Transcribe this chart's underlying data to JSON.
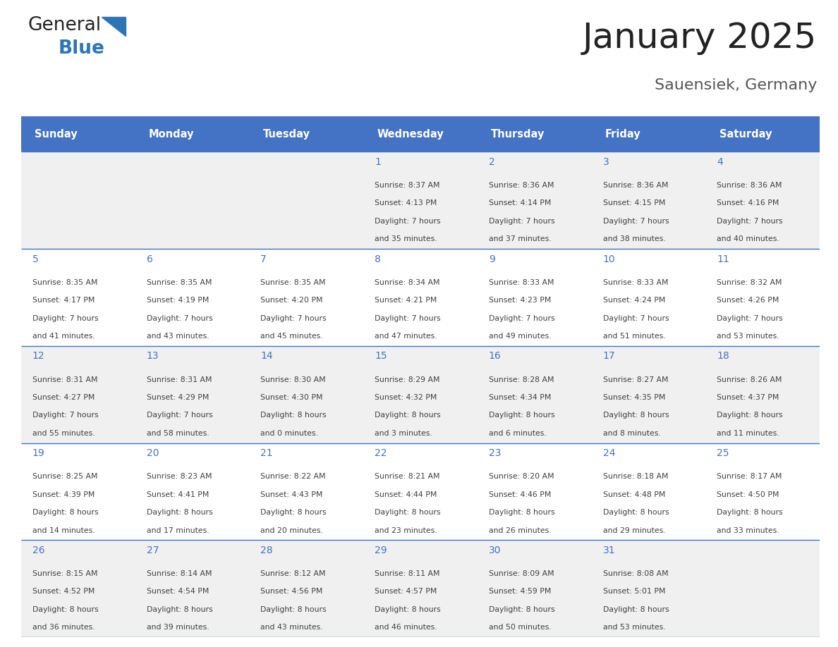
{
  "title": "January 2025",
  "subtitle": "Sauensiek, Germany",
  "days_of_week": [
    "Sunday",
    "Monday",
    "Tuesday",
    "Wednesday",
    "Thursday",
    "Friday",
    "Saturday"
  ],
  "header_bg": "#4472C4",
  "header_text_color": "#FFFFFF",
  "row_bg_odd": "#F0F0F0",
  "row_bg_even": "#FFFFFF",
  "day_number_color": "#4472C4",
  "text_color": "#404040",
  "divider_color": "#4472C4",
  "calendar_data": [
    [
      null,
      null,
      null,
      {
        "day": 1,
        "sunrise": "8:37 AM",
        "sunset": "4:13 PM",
        "daylight_h": "7 hours",
        "daylight_m": "and 35 minutes."
      },
      {
        "day": 2,
        "sunrise": "8:36 AM",
        "sunset": "4:14 PM",
        "daylight_h": "7 hours",
        "daylight_m": "and 37 minutes."
      },
      {
        "day": 3,
        "sunrise": "8:36 AM",
        "sunset": "4:15 PM",
        "daylight_h": "7 hours",
        "daylight_m": "and 38 minutes."
      },
      {
        "day": 4,
        "sunrise": "8:36 AM",
        "sunset": "4:16 PM",
        "daylight_h": "7 hours",
        "daylight_m": "and 40 minutes."
      }
    ],
    [
      {
        "day": 5,
        "sunrise": "8:35 AM",
        "sunset": "4:17 PM",
        "daylight_h": "7 hours",
        "daylight_m": "and 41 minutes."
      },
      {
        "day": 6,
        "sunrise": "8:35 AM",
        "sunset": "4:19 PM",
        "daylight_h": "7 hours",
        "daylight_m": "and 43 minutes."
      },
      {
        "day": 7,
        "sunrise": "8:35 AM",
        "sunset": "4:20 PM",
        "daylight_h": "7 hours",
        "daylight_m": "and 45 minutes."
      },
      {
        "day": 8,
        "sunrise": "8:34 AM",
        "sunset": "4:21 PM",
        "daylight_h": "7 hours",
        "daylight_m": "and 47 minutes."
      },
      {
        "day": 9,
        "sunrise": "8:33 AM",
        "sunset": "4:23 PM",
        "daylight_h": "7 hours",
        "daylight_m": "and 49 minutes."
      },
      {
        "day": 10,
        "sunrise": "8:33 AM",
        "sunset": "4:24 PM",
        "daylight_h": "7 hours",
        "daylight_m": "and 51 minutes."
      },
      {
        "day": 11,
        "sunrise": "8:32 AM",
        "sunset": "4:26 PM",
        "daylight_h": "7 hours",
        "daylight_m": "and 53 minutes."
      }
    ],
    [
      {
        "day": 12,
        "sunrise": "8:31 AM",
        "sunset": "4:27 PM",
        "daylight_h": "7 hours",
        "daylight_m": "and 55 minutes."
      },
      {
        "day": 13,
        "sunrise": "8:31 AM",
        "sunset": "4:29 PM",
        "daylight_h": "7 hours",
        "daylight_m": "and 58 minutes."
      },
      {
        "day": 14,
        "sunrise": "8:30 AM",
        "sunset": "4:30 PM",
        "daylight_h": "8 hours",
        "daylight_m": "and 0 minutes."
      },
      {
        "day": 15,
        "sunrise": "8:29 AM",
        "sunset": "4:32 PM",
        "daylight_h": "8 hours",
        "daylight_m": "and 3 minutes."
      },
      {
        "day": 16,
        "sunrise": "8:28 AM",
        "sunset": "4:34 PM",
        "daylight_h": "8 hours",
        "daylight_m": "and 6 minutes."
      },
      {
        "day": 17,
        "sunrise": "8:27 AM",
        "sunset": "4:35 PM",
        "daylight_h": "8 hours",
        "daylight_m": "and 8 minutes."
      },
      {
        "day": 18,
        "sunrise": "8:26 AM",
        "sunset": "4:37 PM",
        "daylight_h": "8 hours",
        "daylight_m": "and 11 minutes."
      }
    ],
    [
      {
        "day": 19,
        "sunrise": "8:25 AM",
        "sunset": "4:39 PM",
        "daylight_h": "8 hours",
        "daylight_m": "and 14 minutes."
      },
      {
        "day": 20,
        "sunrise": "8:23 AM",
        "sunset": "4:41 PM",
        "daylight_h": "8 hours",
        "daylight_m": "and 17 minutes."
      },
      {
        "day": 21,
        "sunrise": "8:22 AM",
        "sunset": "4:43 PM",
        "daylight_h": "8 hours",
        "daylight_m": "and 20 minutes."
      },
      {
        "day": 22,
        "sunrise": "8:21 AM",
        "sunset": "4:44 PM",
        "daylight_h": "8 hours",
        "daylight_m": "and 23 minutes."
      },
      {
        "day": 23,
        "sunrise": "8:20 AM",
        "sunset": "4:46 PM",
        "daylight_h": "8 hours",
        "daylight_m": "and 26 minutes."
      },
      {
        "day": 24,
        "sunrise": "8:18 AM",
        "sunset": "4:48 PM",
        "daylight_h": "8 hours",
        "daylight_m": "and 29 minutes."
      },
      {
        "day": 25,
        "sunrise": "8:17 AM",
        "sunset": "4:50 PM",
        "daylight_h": "8 hours",
        "daylight_m": "and 33 minutes."
      }
    ],
    [
      {
        "day": 26,
        "sunrise": "8:15 AM",
        "sunset": "4:52 PM",
        "daylight_h": "8 hours",
        "daylight_m": "and 36 minutes."
      },
      {
        "day": 27,
        "sunrise": "8:14 AM",
        "sunset": "4:54 PM",
        "daylight_h": "8 hours",
        "daylight_m": "and 39 minutes."
      },
      {
        "day": 28,
        "sunrise": "8:12 AM",
        "sunset": "4:56 PM",
        "daylight_h": "8 hours",
        "daylight_m": "and 43 minutes."
      },
      {
        "day": 29,
        "sunrise": "8:11 AM",
        "sunset": "4:57 PM",
        "daylight_h": "8 hours",
        "daylight_m": "and 46 minutes."
      },
      {
        "day": 30,
        "sunrise": "8:09 AM",
        "sunset": "4:59 PM",
        "daylight_h": "8 hours",
        "daylight_m": "and 50 minutes."
      },
      {
        "day": 31,
        "sunrise": "8:08 AM",
        "sunset": "5:01 PM",
        "daylight_h": "8 hours",
        "daylight_m": "and 53 minutes."
      },
      null
    ]
  ],
  "logo_text1": "General",
  "logo_text2": "Blue",
  "logo_color1": "#222222",
  "logo_color2": "#2E75B6",
  "logo_triangle_color": "#2E75B6"
}
